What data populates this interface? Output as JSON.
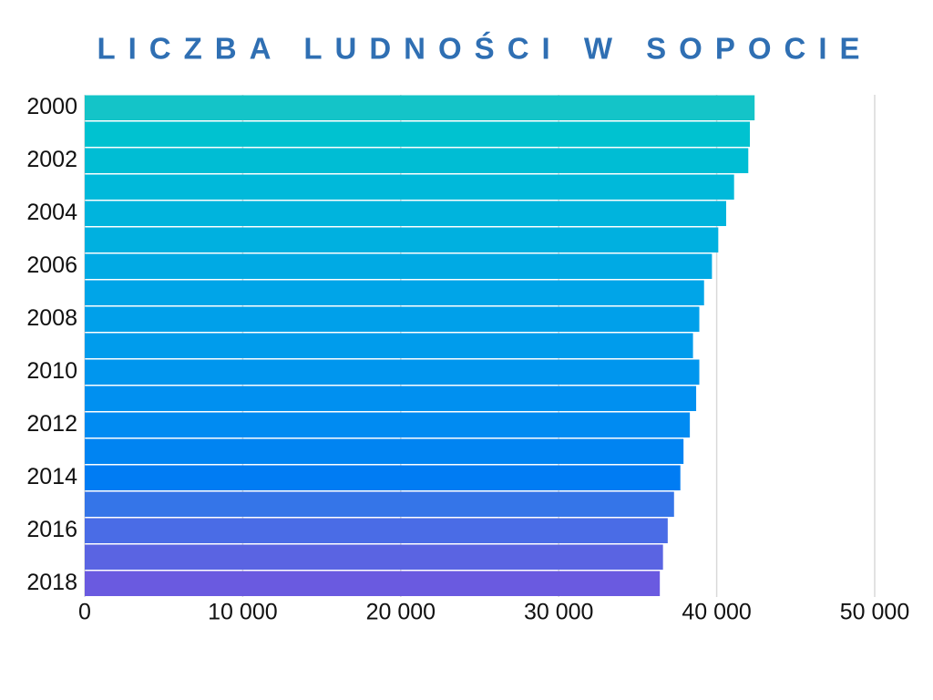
{
  "chart_data": {
    "type": "hbar",
    "title": "LICZBA LUDNOŚCI W SOPOCIE",
    "categories": [
      "2000",
      null,
      "2002",
      null,
      "2004",
      null,
      "2006",
      null,
      "2008",
      null,
      "2010",
      null,
      "2012",
      null,
      "2014",
      null,
      "2016",
      null,
      "2018"
    ],
    "values": [
      42400,
      42100,
      42000,
      41100,
      40600,
      40100,
      39700,
      39200,
      38900,
      38500,
      38900,
      38700,
      38300,
      37900,
      37700,
      37300,
      36900,
      36600,
      36400
    ],
    "colors": [
      "#14c4c8",
      "#00c2d0",
      "#00bdd4",
      "#00b9da",
      "#00b4dd",
      "#00b0e0",
      "#00aae4",
      "#00a5e8",
      "#00a0ea",
      "#009cec",
      "#0096ee",
      "#0090f0",
      "#008bf2",
      "#0084f2",
      "#007cf3",
      "#3575e8",
      "#4a6ce6",
      "#5a64e2",
      "#6a5ae0"
    ],
    "xlim": [
      0,
      50000
    ],
    "xticks": [
      0,
      {
        "value": 10000,
        "label": "10 000"
      },
      {
        "value": 20000,
        "label": "20 000"
      },
      {
        "value": 30000,
        "label": "30 000"
      },
      {
        "value": 40000,
        "label": "40 000"
      },
      {
        "value": 50000,
        "label": "50 000"
      }
    ],
    "grid": true
  }
}
